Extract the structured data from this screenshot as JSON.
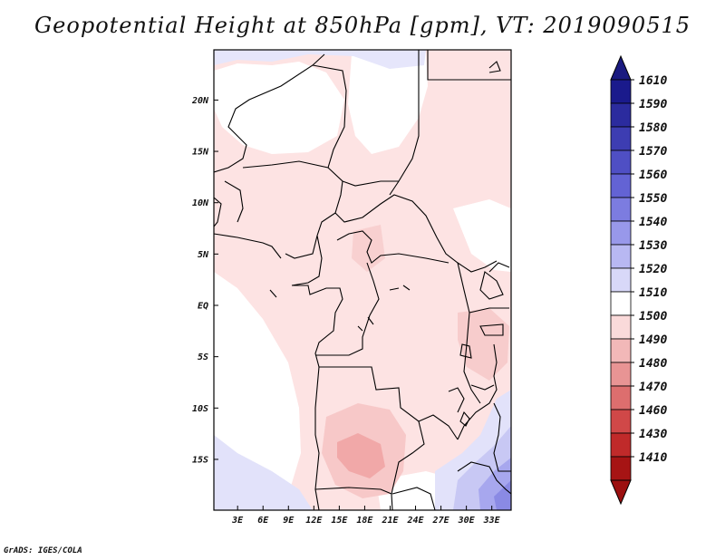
{
  "title": "Geopotential Height at 850hPa [gpm], VT: 2019090515",
  "footer": "GrADS: IGES/COLA",
  "map": {
    "x_ticks": [
      {
        "lon": 3,
        "label": "3E"
      },
      {
        "lon": 6,
        "label": "6E"
      },
      {
        "lon": 9,
        "label": "9E"
      },
      {
        "lon": 12,
        "label": "12E"
      },
      {
        "lon": 15,
        "label": "15E"
      },
      {
        "lon": 18,
        "label": "18E"
      },
      {
        "lon": 21,
        "label": "21E"
      },
      {
        "lon": 24,
        "label": "24E"
      },
      {
        "lon": 27,
        "label": "27E"
      },
      {
        "lon": 30,
        "label": "30E"
      },
      {
        "lon": 33,
        "label": "33E"
      }
    ],
    "y_ticks": [
      {
        "lat": 20,
        "label": "20N"
      },
      {
        "lat": 15,
        "label": "15N"
      },
      {
        "lat": 10,
        "label": "10N"
      },
      {
        "lat": 5,
        "label": "5N"
      },
      {
        "lat": 0,
        "label": "EQ"
      },
      {
        "lat": -5,
        "label": "5S"
      },
      {
        "lat": -10,
        "label": "10S"
      },
      {
        "lat": -15,
        "label": "15S"
      }
    ]
  },
  "colorbar": {
    "labels": [
      "1610",
      "1590",
      "1580",
      "1570",
      "1560",
      "1550",
      "1540",
      "1530",
      "1520",
      "1510",
      "1500",
      "1490",
      "1480",
      "1470",
      "1460",
      "1430",
      "1410"
    ],
    "colors": [
      "#1a1a8c",
      "#2b2b9e",
      "#3d3db2",
      "#4f4fc4",
      "#6363d4",
      "#7c7ce0",
      "#9898ea",
      "#b8b8f2",
      "#d8d8f8",
      "#ffffff",
      "#fadada",
      "#f2b8b8",
      "#e89494",
      "#dd6e6e",
      "#d04848",
      "#c02a2a",
      "#a61414"
    ],
    "top_color": "#1a1a80",
    "bottom_color": "#9c1010"
  }
}
